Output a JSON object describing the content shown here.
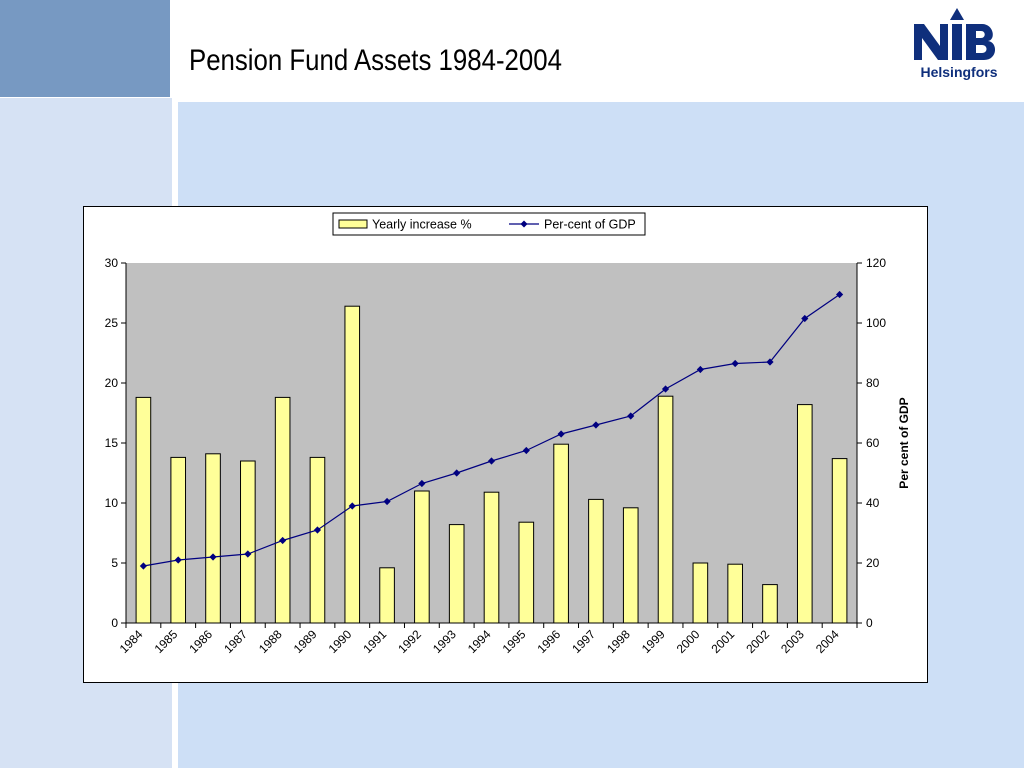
{
  "slide": {
    "title": "Pension Fund Assets 1984-2004",
    "logo_mark": "NIB",
    "logo_sub": "Helsingfors",
    "colors": {
      "corner_block": "#7799c2",
      "background_left": "#d6e2f4",
      "background_right": "#cddff6",
      "logo": "#0f2f7c"
    }
  },
  "chart_data": {
    "type": "bar",
    "title": "",
    "categories": [
      "1984",
      "1985",
      "1986",
      "1987",
      "1988",
      "1989",
      "1990",
      "1991",
      "1992",
      "1993",
      "1994",
      "1995",
      "1996",
      "1997",
      "1998",
      "1999",
      "2000",
      "2001",
      "2002",
      "2003",
      "2004"
    ],
    "series": [
      {
        "name": "Yearly increase %",
        "type": "bar",
        "axis": "left",
        "color": "#ffff99",
        "values": [
          18.8,
          13.8,
          14.1,
          13.5,
          18.8,
          13.8,
          26.4,
          4.6,
          11.0,
          8.2,
          10.9,
          8.4,
          14.9,
          10.3,
          9.6,
          18.9,
          5.0,
          4.9,
          3.2,
          18.2,
          13.7
        ]
      },
      {
        "name": "Per-cent of GDP",
        "type": "line",
        "axis": "right",
        "color": "#000080",
        "values": [
          19,
          21,
          22,
          23,
          27.5,
          31,
          39,
          40.5,
          46.5,
          50,
          54,
          57.5,
          63,
          66,
          69,
          78,
          84.5,
          86.5,
          87,
          101.5,
          109.5
        ]
      }
    ],
    "y_left": {
      "min": 0,
      "max": 30,
      "ticks": [
        0,
        5,
        10,
        15,
        20,
        25,
        30
      ],
      "label": ""
    },
    "y_right": {
      "min": 0,
      "max": 120,
      "ticks": [
        0,
        20,
        40,
        60,
        80,
        100,
        120
      ],
      "label": "Per cent of GDP"
    },
    "plot_background": "#c0c0c0",
    "grid": false,
    "legend_position": "top-center"
  }
}
